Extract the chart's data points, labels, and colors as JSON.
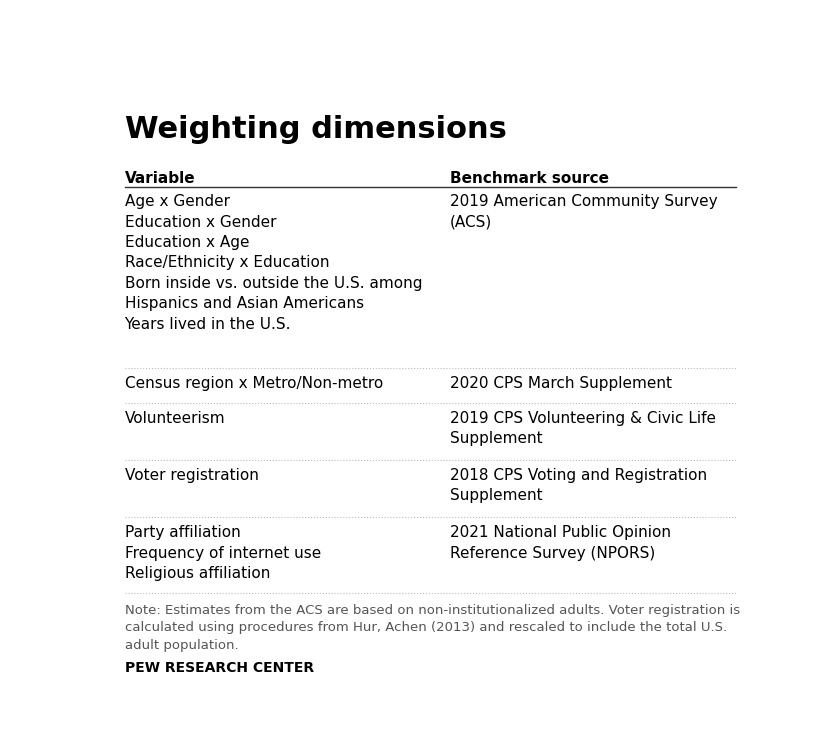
{
  "title": "Weighting dimensions",
  "col1_header": "Variable",
  "col2_header": "Benchmark source",
  "rows": [
    {
      "variable": "Age x Gender\nEducation x Gender\nEducation x Age\nRace/Ethnicity x Education\nBorn inside vs. outside the U.S. among\nHispanics and Asian Americans\nYears lived in the U.S.",
      "benchmark": "2019 American Community Survey\n(ACS)",
      "group_separator_before": false
    },
    {
      "variable": "Census region x Metro/Non-metro",
      "benchmark": "2020 CPS March Supplement",
      "group_separator_before": true
    },
    {
      "variable": "Volunteerism",
      "benchmark": "2019 CPS Volunteering & Civic Life\nSupplement",
      "group_separator_before": false
    },
    {
      "variable": "Voter registration",
      "benchmark": "2018 CPS Voting and Registration\nSupplement",
      "group_separator_before": false
    },
    {
      "variable": "Party affiliation\nFrequency of internet use\nReligious affiliation",
      "benchmark": "2021 National Public Opinion\nReference Survey (NPORS)",
      "group_separator_before": false
    }
  ],
  "note": "Note: Estimates from the ACS are based on non-institutionalized adults. Voter registration is\ncalculated using procedures from Hur, Achen (2013) and rescaled to include the total U.S.\nadult population.",
  "footer": "PEW RESEARCH CENTER",
  "bg_color": "#ffffff",
  "text_color": "#000000",
  "note_color": "#555555",
  "header_line_color": "#333333",
  "separator_color": "#bbbbbb",
  "title_fontsize": 22,
  "header_fontsize": 11,
  "body_fontsize": 11,
  "note_fontsize": 9.5,
  "footer_fontsize": 10,
  "col_split": 0.52
}
